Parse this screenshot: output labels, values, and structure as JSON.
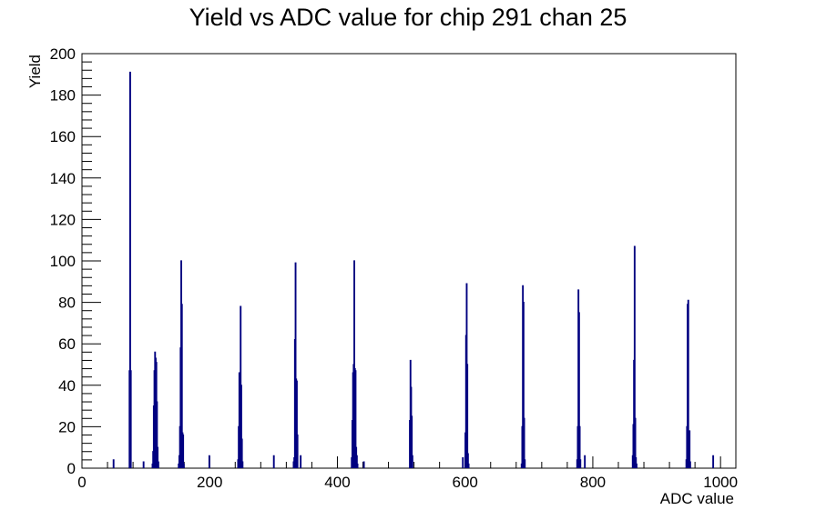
{
  "chart_data": {
    "type": "histogram",
    "title": "Yield vs ADC value for chip 291 chan 25",
    "xlabel": "ADC value",
    "ylabel": "Yield",
    "xlim": [
      0,
      1024
    ],
    "ylim": [
      0,
      200
    ],
    "x_ticks": [
      0,
      200,
      400,
      600,
      800,
      1000
    ],
    "y_ticks": [
      0,
      20,
      40,
      60,
      80,
      100,
      120,
      140,
      160,
      180,
      200
    ],
    "grid": false,
    "line_color": "#000080",
    "bins": [
      {
        "x": 49,
        "y": 4
      },
      {
        "x": 74,
        "y": 47
      },
      {
        "x": 75,
        "y": 191
      },
      {
        "x": 76,
        "y": 47
      },
      {
        "x": 96,
        "y": 3
      },
      {
        "x": 110,
        "y": 2
      },
      {
        "x": 111,
        "y": 8
      },
      {
        "x": 112,
        "y": 30
      },
      {
        "x": 113,
        "y": 47
      },
      {
        "x": 114,
        "y": 56
      },
      {
        "x": 115,
        "y": 53
      },
      {
        "x": 116,
        "y": 51
      },
      {
        "x": 117,
        "y": 32
      },
      {
        "x": 118,
        "y": 10
      },
      {
        "x": 119,
        "y": 3
      },
      {
        "x": 151,
        "y": 2
      },
      {
        "x": 152,
        "y": 6
      },
      {
        "x": 153,
        "y": 20
      },
      {
        "x": 154,
        "y": 58
      },
      {
        "x": 155,
        "y": 100
      },
      {
        "x": 156,
        "y": 79
      },
      {
        "x": 157,
        "y": 17
      },
      {
        "x": 158,
        "y": 16
      },
      {
        "x": 159,
        "y": 2
      },
      {
        "x": 199,
        "y": 6
      },
      {
        "x": 244,
        "y": 4
      },
      {
        "x": 245,
        "y": 20
      },
      {
        "x": 246,
        "y": 46
      },
      {
        "x": 247,
        "y": 35
      },
      {
        "x": 248,
        "y": 78
      },
      {
        "x": 249,
        "y": 40
      },
      {
        "x": 250,
        "y": 14
      },
      {
        "x": 251,
        "y": 3
      },
      {
        "x": 300,
        "y": 6
      },
      {
        "x": 331,
        "y": 3
      },
      {
        "x": 332,
        "y": 5
      },
      {
        "x": 333,
        "y": 62
      },
      {
        "x": 334,
        "y": 99
      },
      {
        "x": 335,
        "y": 43
      },
      {
        "x": 336,
        "y": 42
      },
      {
        "x": 337,
        "y": 16
      },
      {
        "x": 342,
        "y": 6
      },
      {
        "x": 422,
        "y": 5
      },
      {
        "x": 423,
        "y": 23
      },
      {
        "x": 424,
        "y": 46
      },
      {
        "x": 425,
        "y": 50
      },
      {
        "x": 426,
        "y": 100
      },
      {
        "x": 427,
        "y": 48
      },
      {
        "x": 428,
        "y": 47
      },
      {
        "x": 429,
        "y": 10
      },
      {
        "x": 430,
        "y": 6
      },
      {
        "x": 431,
        "y": 2
      },
      {
        "x": 441,
        "y": 3
      },
      {
        "x": 513,
        "y": 23
      },
      {
        "x": 514,
        "y": 52
      },
      {
        "x": 515,
        "y": 39
      },
      {
        "x": 516,
        "y": 25
      },
      {
        "x": 517,
        "y": 6
      },
      {
        "x": 596,
        "y": 5
      },
      {
        "x": 600,
        "y": 17
      },
      {
        "x": 601,
        "y": 64
      },
      {
        "x": 602,
        "y": 89
      },
      {
        "x": 603,
        "y": 50
      },
      {
        "x": 604,
        "y": 7
      },
      {
        "x": 605,
        "y": 2
      },
      {
        "x": 688,
        "y": 2
      },
      {
        "x": 689,
        "y": 20
      },
      {
        "x": 690,
        "y": 88
      },
      {
        "x": 691,
        "y": 80
      },
      {
        "x": 692,
        "y": 24
      },
      {
        "x": 693,
        "y": 4
      },
      {
        "x": 775,
        "y": 4
      },
      {
        "x": 776,
        "y": 20
      },
      {
        "x": 777,
        "y": 86
      },
      {
        "x": 778,
        "y": 75
      },
      {
        "x": 779,
        "y": 20
      },
      {
        "x": 780,
        "y": 4
      },
      {
        "x": 787,
        "y": 6
      },
      {
        "x": 862,
        "y": 6
      },
      {
        "x": 863,
        "y": 21
      },
      {
        "x": 864,
        "y": 52
      },
      {
        "x": 865,
        "y": 107
      },
      {
        "x": 866,
        "y": 24
      },
      {
        "x": 867,
        "y": 5
      },
      {
        "x": 868,
        "y": 2
      },
      {
        "x": 946,
        "y": 4
      },
      {
        "x": 947,
        "y": 20
      },
      {
        "x": 948,
        "y": 79
      },
      {
        "x": 949,
        "y": 81
      },
      {
        "x": 950,
        "y": 12
      },
      {
        "x": 951,
        "y": 18
      },
      {
        "x": 952,
        "y": 3
      },
      {
        "x": 988,
        "y": 6
      }
    ]
  }
}
